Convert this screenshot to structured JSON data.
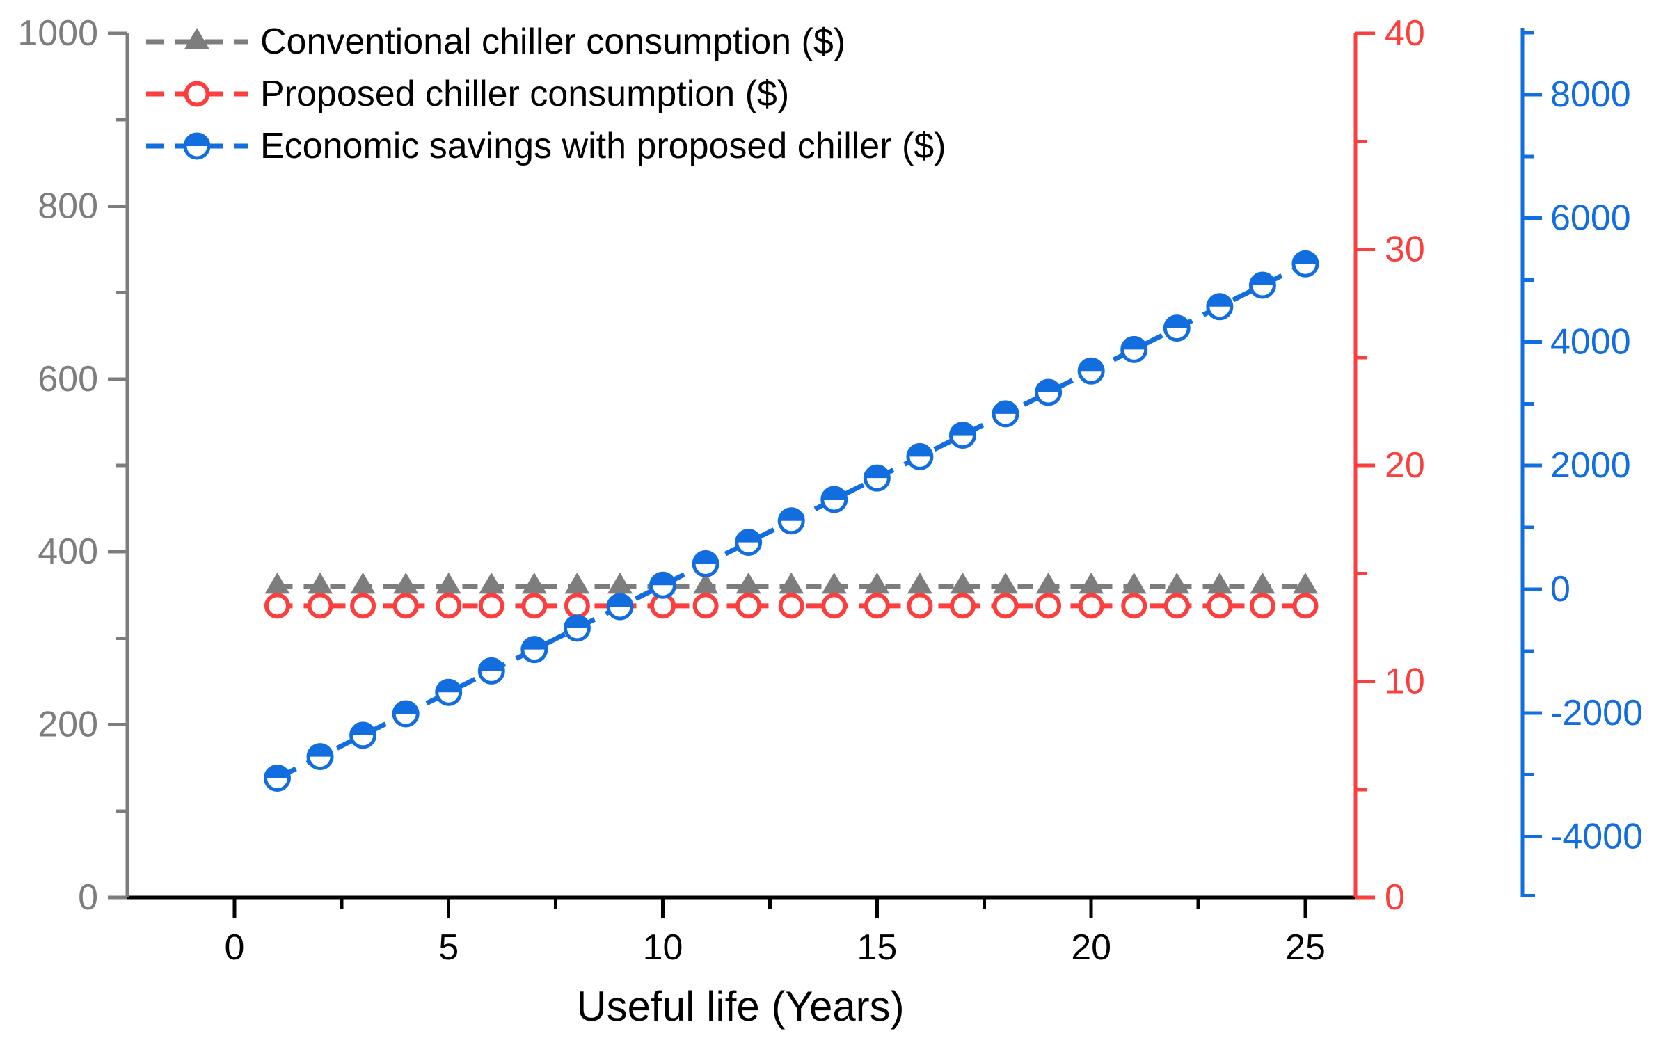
{
  "chart_data": {
    "type": "line",
    "title": "",
    "xlabel": "Useful life (Years)",
    "legend_position": "top-left",
    "grid": false,
    "x": [
      1,
      2,
      3,
      4,
      5,
      6,
      7,
      8,
      9,
      10,
      11,
      12,
      13,
      14,
      15,
      16,
      17,
      18,
      19,
      20,
      21,
      22,
      23,
      24,
      25
    ],
    "series": [
      {
        "name": "Conventional chiller consumption ($)",
        "axis": "left",
        "color": "#7d7d7d",
        "marker": "triangle-filled",
        "line_style": "dashed",
        "values": [
          360,
          360,
          360,
          360,
          360,
          360,
          360,
          360,
          360,
          360,
          360,
          360,
          360,
          360,
          360,
          360,
          360,
          360,
          360,
          360,
          360,
          360,
          360,
          360,
          360
        ]
      },
      {
        "name": "Proposed chiller consumption ($)",
        "axis": "red_right",
        "color": "#fb3e3e",
        "marker": "circle-open",
        "line_style": "dashed",
        "values": [
          13.5,
          13.5,
          13.5,
          13.5,
          13.5,
          13.5,
          13.5,
          13.5,
          13.5,
          13.5,
          13.5,
          13.5,
          13.5,
          13.5,
          13.5,
          13.5,
          13.5,
          13.5,
          13.5,
          13.5,
          13.5,
          13.5,
          13.5,
          13.5,
          13.5
        ]
      },
      {
        "name": "Economic savings with proposed chiller ($)",
        "axis": "blue_right",
        "color": "#126ede",
        "marker": "circle-half-filled",
        "line_style": "dashed",
        "values": [
          -3054,
          -2707,
          -2361,
          -2014,
          -1668,
          -1321,
          -975,
          -628,
          -282,
          65,
          412,
          758,
          1105,
          1451,
          1798,
          2144,
          2491,
          2837,
          3184,
          3530,
          3877,
          4223,
          4570,
          4916,
          5263
        ]
      }
    ],
    "axes": {
      "x": {
        "label": "Useful life (Years)",
        "color": "#000000",
        "range": [
          -2.5,
          26.17
        ],
        "major_ticks": [
          0,
          5,
          10,
          15,
          20,
          25
        ],
        "minor_ticks": [
          2.5,
          7.5,
          12.5,
          17.5,
          22.5
        ]
      },
      "left": {
        "color": "#7d7d7d",
        "range": [
          0,
          1000
        ],
        "major_ticks": [
          0,
          200,
          400,
          600,
          800,
          1000
        ],
        "minor_ticks": [
          100,
          300,
          500,
          700,
          900
        ]
      },
      "red_right": {
        "color": "#fb3e3e",
        "range": [
          0,
          40
        ],
        "major_ticks": [
          0,
          10,
          20,
          30,
          40
        ],
        "minor_ticks": [
          5,
          15,
          25,
          35
        ]
      },
      "blue_right": {
        "color": "#126ede",
        "range": [
          -4984,
          9079
        ],
        "major_ticks": [
          -4000,
          -2000,
          0,
          2000,
          4000,
          6000,
          8000
        ],
        "minor_ticks": [
          -3000,
          -1000,
          1000,
          3000,
          5000,
          7000,
          9000
        ]
      }
    }
  }
}
